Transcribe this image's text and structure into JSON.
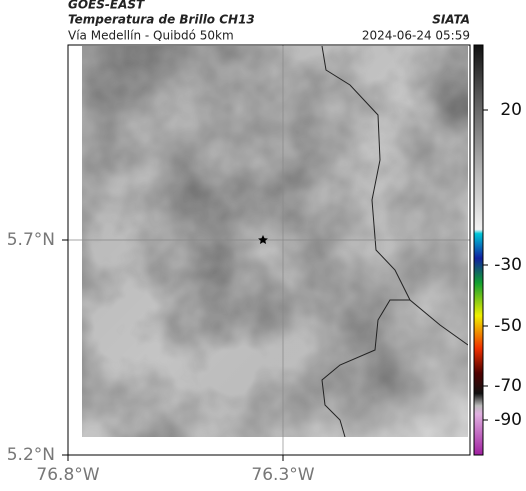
{
  "header": {
    "source": "GOES-EAST",
    "title": "Temperatura de Brillo CH13",
    "agency": "SIATA",
    "subtitle": "Vía Medellín - Quibdó 50km",
    "timestamp": "2024-06-24 05:59"
  },
  "map": {
    "lat_labels": [
      "5.7°N",
      "5.2°N"
    ],
    "lon_labels": [
      "76.8°W",
      "76.3°W"
    ]
  },
  "colorbar": {
    "ticks": [
      20,
      -30,
      -50,
      -70,
      -90
    ]
  }
}
